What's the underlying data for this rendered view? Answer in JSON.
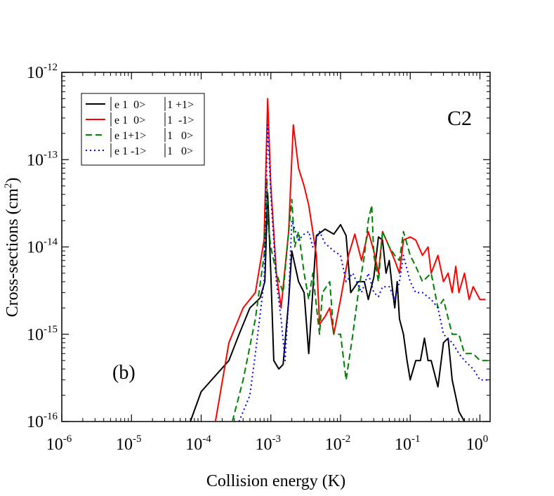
{
  "chart_data": {
    "type": "line",
    "xscale": "log",
    "yscale": "log",
    "xlabel": "Collision energy (K)",
    "ylabel_main": "Cross-sections (cm",
    "ylabel_sup": "2",
    "ylabel_close": ")",
    "xlim": [
      1e-06,
      1.4
    ],
    "ylim": [
      1e-16,
      1e-12
    ],
    "x_ticks": [
      {
        "base": "10",
        "exp": "-6",
        "value": 1e-06
      },
      {
        "base": "10",
        "exp": "-5",
        "value": 1e-05
      },
      {
        "base": "10",
        "exp": "-4",
        "value": 0.0001
      },
      {
        "base": "10",
        "exp": "-3",
        "value": 0.001
      },
      {
        "base": "10",
        "exp": "-2",
        "value": 0.01
      },
      {
        "base": "10",
        "exp": "-1",
        "value": 0.1
      },
      {
        "base": "10",
        "exp": "0",
        "value": 1
      }
    ],
    "y_ticks": [
      {
        "base": "10",
        "exp": "-16",
        "value": 1e-16
      },
      {
        "base": "10",
        "exp": "-15",
        "value": 1e-15
      },
      {
        "base": "10",
        "exp": "-14",
        "value": 1e-14
      },
      {
        "base": "10",
        "exp": "-13",
        "value": 1e-13
      },
      {
        "base": "10",
        "exp": "-12",
        "value": 1e-12
      }
    ],
    "panel_label": "(b)",
    "system_label": "C2",
    "legend_position": "top-left",
    "series": [
      {
        "name": "e 1  0>|1 +1>",
        "label_left": "e 1  0>",
        "label_right": "1 +1>",
        "color": "#000000",
        "dash": "solid",
        "points": [
          [
            7e-05,
            1e-16
          ],
          [
            0.0001,
            2.2e-16
          ],
          [
            0.00025,
            5e-16
          ],
          [
            0.00035,
            1e-15
          ],
          [
            0.0005,
            2e-15
          ],
          [
            0.0007,
            2.6e-15
          ],
          [
            0.00082,
            4e-15
          ],
          [
            0.0009,
            4.2e-14
          ],
          [
            0.001,
            5e-15
          ],
          [
            0.0011,
            5e-16
          ],
          [
            0.0013,
            4e-16
          ],
          [
            0.0015,
            4.5e-16
          ],
          [
            0.0018,
            2.4e-15
          ],
          [
            0.002,
            9e-15
          ],
          [
            0.0025,
            4e-15
          ],
          [
            0.003,
            3e-15
          ],
          [
            0.0035,
            6e-16
          ],
          [
            0.0045,
            1.35e-14
          ],
          [
            0.006,
            1.6e-14
          ],
          [
            0.008,
            1.4e-14
          ],
          [
            0.01,
            1.8e-14
          ],
          [
            0.012,
            1.35e-14
          ],
          [
            0.014,
            3e-15
          ],
          [
            0.018,
            4e-15
          ],
          [
            0.022,
            4e-15
          ],
          [
            0.025,
            2.5e-15
          ],
          [
            0.03,
            4.5e-15
          ],
          [
            0.035,
            1.3e-14
          ],
          [
            0.04,
            1.2e-14
          ],
          [
            0.045,
            5e-15
          ],
          [
            0.05,
            7e-15
          ],
          [
            0.055,
            3.5e-15
          ],
          [
            0.06,
            2e-15
          ],
          [
            0.065,
            4e-15
          ],
          [
            0.07,
            1.5e-15
          ],
          [
            0.08,
            1e-15
          ],
          [
            0.09,
            5e-16
          ],
          [
            0.1,
            3e-16
          ],
          [
            0.12,
            5e-16
          ],
          [
            0.14,
            5e-16
          ],
          [
            0.16,
            9e-16
          ],
          [
            0.18,
            5e-16
          ],
          [
            0.2,
            5e-16
          ],
          [
            0.25,
            2.5e-16
          ],
          [
            0.3,
            8e-16
          ],
          [
            0.35,
            9e-16
          ],
          [
            0.4,
            3e-16
          ],
          [
            0.5,
            1.3e-16
          ],
          [
            0.6,
            1e-16
          ]
        ]
      },
      {
        "name": "e 1  0>|1  -1>",
        "label_left": "e 1  0>",
        "label_right": "1  -1>",
        "color": "#ff0000",
        "dash": "solid",
        "points": [
          [
            0.00016,
            1e-16
          ],
          [
            0.00025,
            8e-16
          ],
          [
            0.0004,
            2e-15
          ],
          [
            0.0006,
            3e-15
          ],
          [
            0.0008,
            1.2e-14
          ],
          [
            0.0009,
            5e-13
          ],
          [
            0.001,
            5e-14
          ],
          [
            0.0012,
            5e-15
          ],
          [
            0.0014,
            2e-15
          ],
          [
            0.0018,
            1.5e-14
          ],
          [
            0.0021,
            2.5e-13
          ],
          [
            0.0025,
            8e-14
          ],
          [
            0.003,
            5e-14
          ],
          [
            0.0035,
            3e-14
          ],
          [
            0.004,
            1.5e-14
          ],
          [
            0.0045,
            8e-15
          ],
          [
            0.005,
            1.3e-15
          ],
          [
            0.006,
            1.6e-15
          ],
          [
            0.007,
            2e-15
          ],
          [
            0.008,
            1e-15
          ],
          [
            0.01,
            2.5e-15
          ],
          [
            0.013,
            8e-15
          ],
          [
            0.016,
            1.4e-14
          ],
          [
            0.02,
            7e-15
          ],
          [
            0.025,
            1.5e-14
          ],
          [
            0.03,
            9e-15
          ],
          [
            0.035,
            5e-15
          ],
          [
            0.04,
            1.5e-14
          ],
          [
            0.05,
            1e-14
          ],
          [
            0.06,
            7e-15
          ],
          [
            0.07,
            5e-15
          ],
          [
            0.08,
            1.2e-14
          ],
          [
            0.1,
            1.3e-14
          ],
          [
            0.12,
            1.2e-14
          ],
          [
            0.15,
            8e-15
          ],
          [
            0.18,
            1e-14
          ],
          [
            0.2,
            5e-15
          ],
          [
            0.25,
            8e-15
          ],
          [
            0.3,
            4e-15
          ],
          [
            0.35,
            5e-15
          ],
          [
            0.4,
            3e-15
          ],
          [
            0.45,
            6e-15
          ],
          [
            0.5,
            3e-15
          ],
          [
            0.6,
            5e-15
          ],
          [
            0.7,
            2.5e-15
          ],
          [
            0.8,
            3.5e-15
          ],
          [
            1,
            2.5e-15
          ],
          [
            1.2,
            2.5e-15
          ]
        ]
      },
      {
        "name": "e 1+1>|1   0>",
        "label_left": "e 1+1>",
        "label_right": "1   0>",
        "color": "#008000",
        "dash": "dashed",
        "points": [
          [
            0.00028,
            1e-16
          ],
          [
            0.0004,
            3e-16
          ],
          [
            0.0006,
            1.5e-15
          ],
          [
            0.0008,
            8e-15
          ],
          [
            0.00088,
            6e-14
          ],
          [
            0.0009,
            2e-14
          ],
          [
            0.001,
            1e-14
          ],
          [
            0.0012,
            5e-15
          ],
          [
            0.0015,
            3e-15
          ],
          [
            0.0018,
            1.5e-14
          ],
          [
            0.002,
            3.5e-14
          ],
          [
            0.0022,
            1e-14
          ],
          [
            0.0025,
            1.5e-14
          ],
          [
            0.003,
            5e-15
          ],
          [
            0.0035,
            2.5e-15
          ],
          [
            0.004,
            5e-15
          ],
          [
            0.005,
            1e-15
          ],
          [
            0.0055,
            3e-15
          ],
          [
            0.007,
            4e-15
          ],
          [
            0.008,
            1e-15
          ],
          [
            0.01,
            1e-15
          ],
          [
            0.012,
            3e-16
          ],
          [
            0.015,
            1e-15
          ],
          [
            0.018,
            3e-15
          ],
          [
            0.022,
            8e-15
          ],
          [
            0.025,
            2e-14
          ],
          [
            0.028,
            3e-14
          ],
          [
            0.03,
            8e-15
          ],
          [
            0.035,
            4e-15
          ],
          [
            0.04,
            1.5e-14
          ],
          [
            0.05,
            1e-14
          ],
          [
            0.06,
            8e-15
          ],
          [
            0.07,
            7e-15
          ],
          [
            0.08,
            1.5e-14
          ],
          [
            0.1,
            8e-15
          ],
          [
            0.12,
            6e-15
          ],
          [
            0.15,
            4e-15
          ],
          [
            0.2,
            5e-15
          ],
          [
            0.25,
            2e-15
          ],
          [
            0.3,
            2.5e-15
          ],
          [
            0.4,
            1e-15
          ],
          [
            0.5,
            1e-15
          ],
          [
            0.6,
            6e-16
          ],
          [
            0.8,
            6e-16
          ],
          [
            1,
            5e-16
          ],
          [
            1.3,
            5e-16
          ]
        ]
      },
      {
        "name": "e 1 -1>|1   0>",
        "label_left": "e 1 -1>",
        "label_right": "1   0>",
        "color": "#0000ff",
        "dash": "dotted",
        "points": [
          [
            0.00035,
            1e-16
          ],
          [
            0.0005,
            2e-16
          ],
          [
            0.0006,
            6e-16
          ],
          [
            0.0008,
            4e-15
          ],
          [
            0.0009,
            2.5e-13
          ],
          [
            0.001,
            4e-14
          ],
          [
            0.0012,
            4e-15
          ],
          [
            0.0014,
            1.5e-15
          ],
          [
            0.0016,
            5e-16
          ],
          [
            0.0018,
            2.5e-15
          ],
          [
            0.002,
            2e-14
          ],
          [
            0.0025,
            1.2e-14
          ],
          [
            0.003,
            1.4e-14
          ],
          [
            0.0035,
            1.5e-14
          ],
          [
            0.004,
            1e-14
          ],
          [
            0.005,
            1.5e-14
          ],
          [
            0.006,
            1.1e-14
          ],
          [
            0.008,
            9e-15
          ],
          [
            0.01,
            8e-15
          ],
          [
            0.012,
            4e-15
          ],
          [
            0.015,
            5e-15
          ],
          [
            0.02,
            3e-15
          ],
          [
            0.025,
            5e-15
          ],
          [
            0.03,
            3e-15
          ],
          [
            0.035,
            2.7e-15
          ],
          [
            0.04,
            3.5e-15
          ],
          [
            0.05,
            3.5e-15
          ],
          [
            0.06,
            2.5e-15
          ],
          [
            0.07,
            4e-15
          ],
          [
            0.08,
            8e-15
          ],
          [
            0.1,
            4e-15
          ],
          [
            0.12,
            3e-15
          ],
          [
            0.15,
            3e-15
          ],
          [
            0.2,
            2.5e-15
          ],
          [
            0.25,
            2e-15
          ],
          [
            0.3,
            1e-15
          ],
          [
            0.4,
            8e-16
          ],
          [
            0.5,
            6e-16
          ],
          [
            0.6,
            5e-16
          ],
          [
            0.8,
            4e-16
          ],
          [
            1,
            3e-16
          ],
          [
            1.3,
            3e-16
          ]
        ]
      }
    ]
  }
}
